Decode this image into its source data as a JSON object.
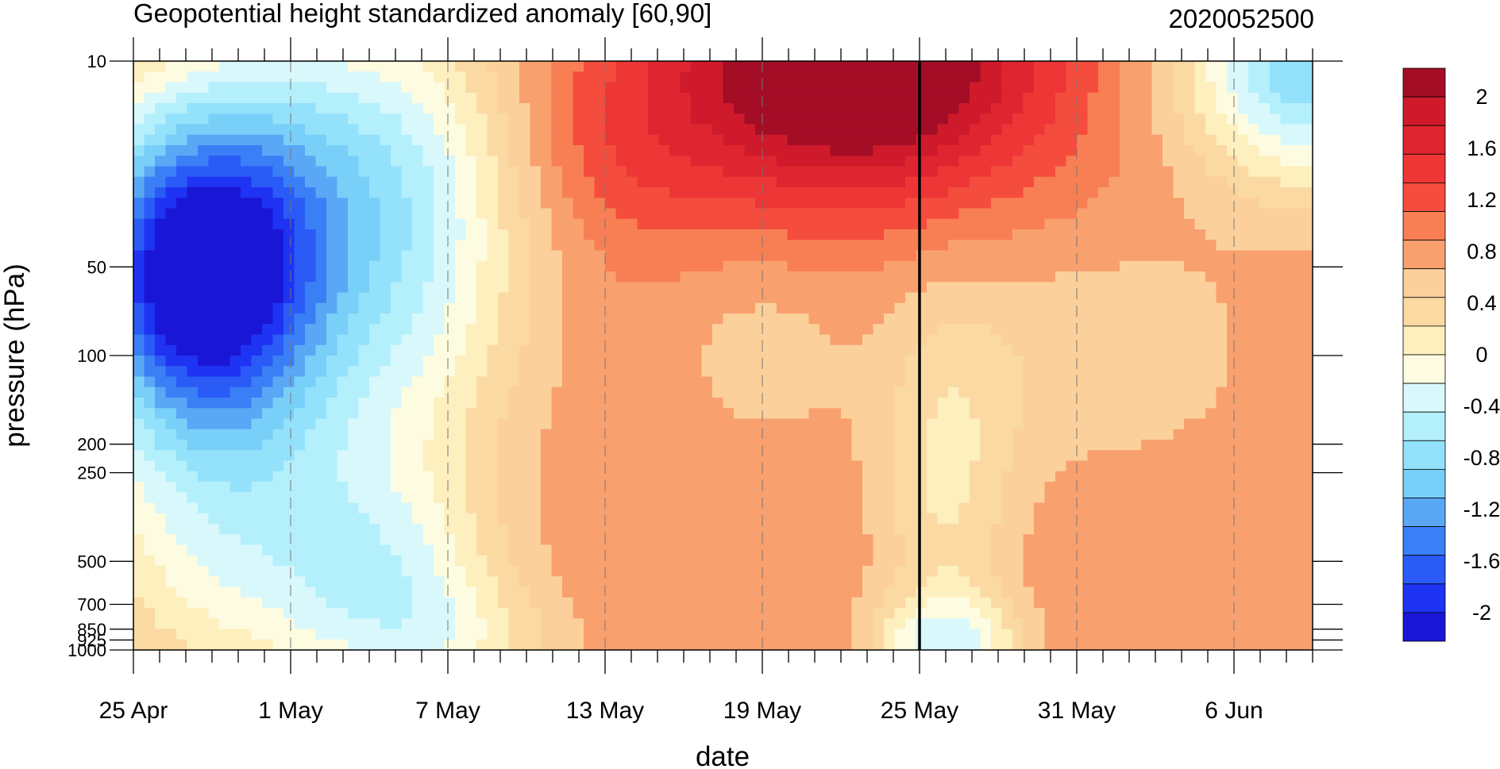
{
  "chart_data": {
    "type": "heatmap",
    "title": "Geopotential height standardized anomaly [60,90]",
    "date_label": "2020052500",
    "xlabel": "date",
    "ylabel": "pressure (hPa)",
    "x_ticks": [
      "25 Apr",
      "1 May",
      "7 May",
      "13 May",
      "19 May",
      "25 May",
      "31 May",
      "6 Jun"
    ],
    "x_tick_day_offsets": [
      0,
      6,
      12,
      18,
      24,
      30,
      36,
      42
    ],
    "x_range_days": [
      0,
      45
    ],
    "marked_date": "25 May",
    "y_ticks": [
      "10",
      "50",
      "100",
      "200",
      "250",
      "500",
      "700",
      "850",
      "925",
      "1000"
    ],
    "y_scale": "log",
    "y_range": [
      1000,
      10
    ],
    "colorbar": {
      "levels": [
        -2.2,
        -2,
        -1.8,
        -1.6,
        -1.4,
        -1.2,
        -1,
        -0.8,
        -0.6,
        -0.4,
        -0.2,
        0,
        0.2,
        0.4,
        0.6,
        0.8,
        1,
        1.2,
        1.4,
        1.6,
        1.8,
        2,
        2.2
      ],
      "labels": [
        "2",
        "1.6",
        "1.2",
        "0.8",
        "0.4",
        "0",
        "-0.4",
        "-0.8",
        "-1.2",
        "-1.6",
        "-2"
      ],
      "colors": [
        "#1a16d6",
        "#1f33f2",
        "#2a5bf6",
        "#3a7ff6",
        "#5aa7f6",
        "#78cff8",
        "#94e1fb",
        "#b4effc",
        "#d8f8fc",
        "#fdfbe0",
        "#fdefbe",
        "#fbd9a3",
        "#fbd09a",
        "#f9a06f",
        "#f87f54",
        "#f44d3d",
        "#ee3636",
        "#df2530",
        "#cf1a2b",
        "#a30d26"
      ]
    },
    "series": []
  }
}
